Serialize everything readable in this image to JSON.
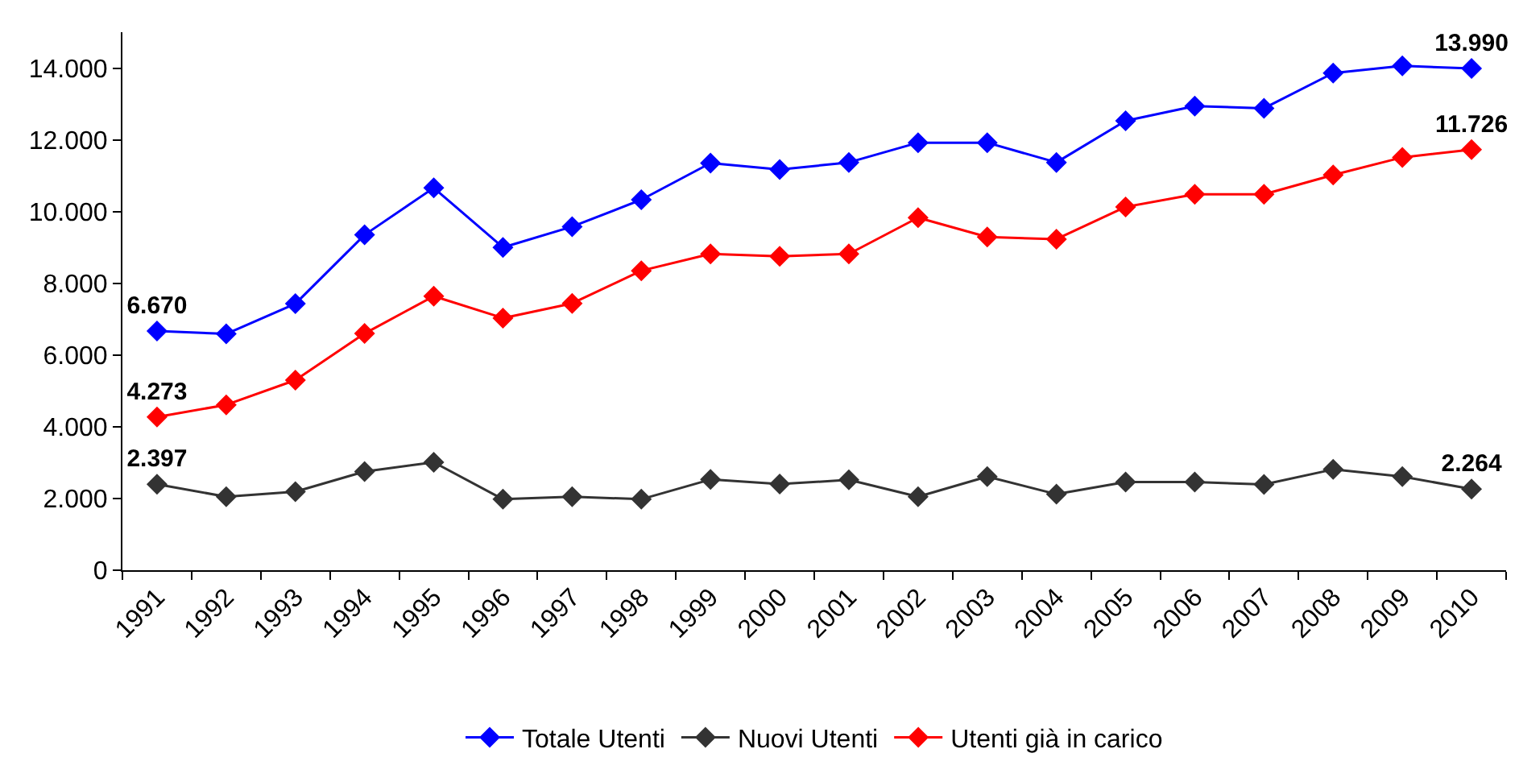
{
  "chart_data": {
    "type": "line",
    "categories": [
      "1991",
      "1992",
      "1993",
      "1994",
      "1995",
      "1996",
      "1997",
      "1998",
      "1999",
      "2000",
      "2001",
      "2002",
      "2003",
      "2004",
      "2005",
      "2006",
      "2007",
      "2008",
      "2009",
      "2010"
    ],
    "series": [
      {
        "name": "Totale Utenti",
        "color": "#0000ff",
        "values": [
          6670,
          6590,
          7430,
          9350,
          10660,
          9000,
          9580,
          10330,
          11350,
          11170,
          11370,
          11920,
          11920,
          11370,
          12530,
          12940,
          12880,
          13860,
          14060,
          13990
        ],
        "value_labels": [
          "6.670",
          null,
          null,
          null,
          null,
          null,
          null,
          null,
          null,
          null,
          null,
          null,
          null,
          null,
          null,
          null,
          null,
          null,
          null,
          "13.990"
        ]
      },
      {
        "name": "Nuovi Utenti",
        "color": "#333333",
        "values": [
          2397,
          2050,
          2190,
          2750,
          3010,
          1980,
          2050,
          1980,
          2530,
          2400,
          2520,
          2050,
          2610,
          2120,
          2460,
          2460,
          2390,
          2810,
          2610,
          2264
        ],
        "value_labels": [
          "2.397",
          null,
          null,
          null,
          null,
          null,
          null,
          null,
          null,
          null,
          null,
          null,
          null,
          null,
          null,
          null,
          null,
          null,
          null,
          "2.264"
        ]
      },
      {
        "name": "Utenti già in carico",
        "color": "#ff0000",
        "values": [
          4273,
          4610,
          5300,
          6600,
          7640,
          7030,
          7440,
          8350,
          8820,
          8750,
          8820,
          9830,
          9290,
          9230,
          10130,
          10480,
          10480,
          11020,
          11510,
          11726
        ],
        "value_labels": [
          "4.273",
          null,
          null,
          null,
          null,
          null,
          null,
          null,
          null,
          null,
          null,
          null,
          null,
          null,
          null,
          null,
          null,
          null,
          null,
          "11.726"
        ]
      }
    ],
    "ylim": [
      0,
      15000
    ],
    "yticks": [
      0,
      {
        "value": 2000,
        "label": "2.000"
      },
      {
        "value": 4000,
        "label": "4.000"
      },
      {
        "value": 6000,
        "label": "6.000"
      },
      {
        "value": 8000,
        "label": "8.000"
      },
      {
        "value": 10000,
        "label": "10.000"
      },
      {
        "value": 12000,
        "label": "12.000"
      },
      {
        "value": 14000,
        "label": "14.000"
      }
    ],
    "grid": false,
    "legend": "bottom",
    "marker": "diamond",
    "line_style": "solid"
  }
}
